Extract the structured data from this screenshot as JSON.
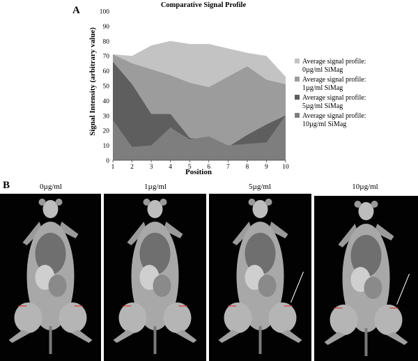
{
  "panel_a_label": "A",
  "panel_b_label": "B",
  "chart_data": {
    "type": "area",
    "title": "Comparative Signal Profile",
    "xlabel": "Position",
    "ylabel": "Signal Intensity (arbitrary value)",
    "x": [
      1,
      2,
      3,
      4,
      5,
      6,
      7,
      8,
      9,
      10
    ],
    "ylim": [
      0,
      100
    ],
    "yticks": [
      0,
      10,
      20,
      30,
      40,
      50,
      60,
      70,
      80,
      90,
      100
    ],
    "grid": false,
    "legend_position": "right",
    "series": [
      {
        "name_lines": [
          "Average signal profile:",
          "0µg/ml SiMag"
        ],
        "values": [
          71,
          70,
          77,
          80,
          78,
          78,
          75,
          72,
          70,
          56
        ],
        "color": "#c3c3c3"
      },
      {
        "name_lines": [
          "Average signal profile:",
          "1µg/ml SiMag"
        ],
        "values": [
          71,
          65,
          61,
          57,
          52,
          49,
          56,
          63,
          54,
          51
        ],
        "color": "#9c9c9c"
      },
      {
        "name_lines": [
          "Average signal profile:",
          "5µg/ml SiMag"
        ],
        "values": [
          66,
          51,
          31,
          31,
          15,
          13,
          9,
          17,
          24,
          30
        ],
        "color": "#5e5e5e"
      },
      {
        "name_lines": [
          "Average signal profile:",
          "10µg/ml SiMag"
        ],
        "values": [
          27,
          9,
          10,
          22,
          14,
          16,
          10,
          11,
          12,
          30
        ],
        "color": "#7e7e7e"
      }
    ]
  },
  "mri_panels": [
    {
      "label": "0µg/ml",
      "arrow": false
    },
    {
      "label": "1µg/ml",
      "arrow": false
    },
    {
      "label": "5µg/ml",
      "arrow": true
    },
    {
      "label": "10µg/ml",
      "arrow": true
    }
  ]
}
